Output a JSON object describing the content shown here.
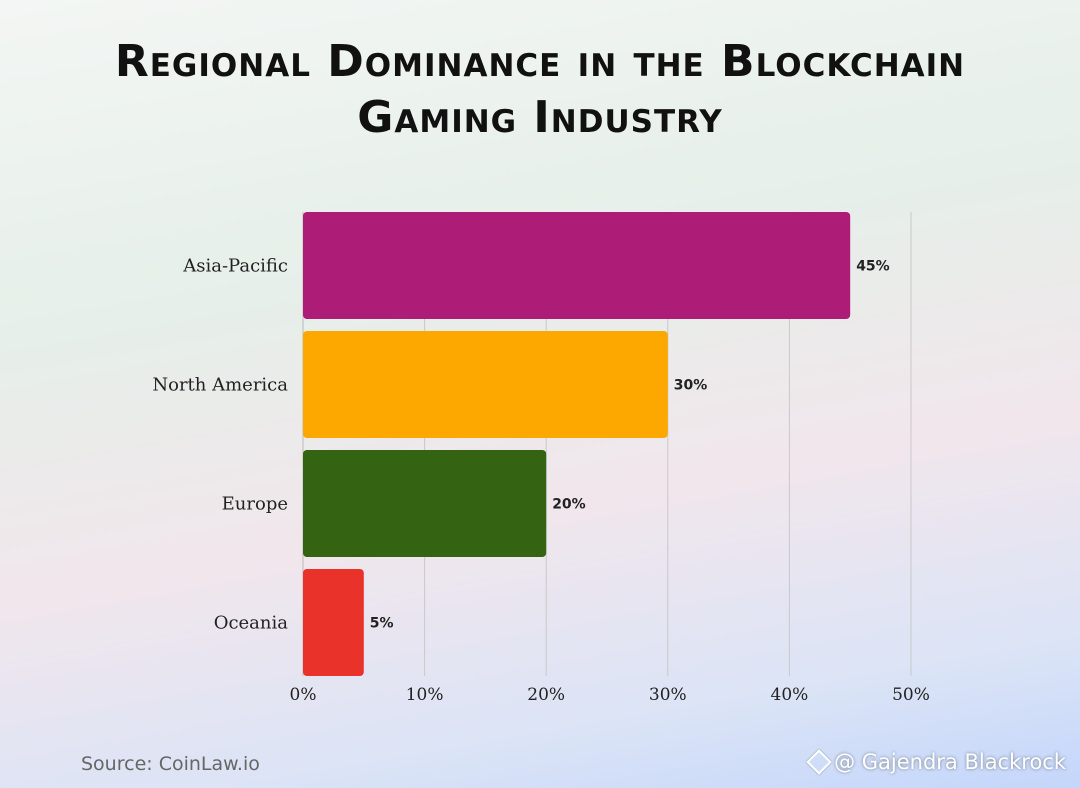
{
  "chart_data": {
    "type": "bar",
    "orientation": "horizontal",
    "title_lines": [
      "Regional Dominance in the Blockchain",
      "Gaming Industry"
    ],
    "categories": [
      "Asia-Pacific",
      "North America",
      "Europe",
      "Oceania"
    ],
    "values": [
      45,
      30,
      20,
      5
    ],
    "value_labels": [
      "45%",
      "30%",
      "20%",
      "5%"
    ],
    "colors": [
      "#ad1d78",
      "#fda800",
      "#346311",
      "#e8322a"
    ],
    "xlim": [
      0,
      50
    ],
    "x_ticks": [
      0,
      10,
      20,
      30,
      40,
      50
    ],
    "x_tick_labels": [
      "0%",
      "10%",
      "20%",
      "30%",
      "40%",
      "50%"
    ],
    "grid": "vertical"
  },
  "footer": {
    "source": "Source: CoinLaw.io",
    "watermark": "@ Gajendra Blackrock",
    "watermark_icon": "diamond-logo-icon"
  }
}
